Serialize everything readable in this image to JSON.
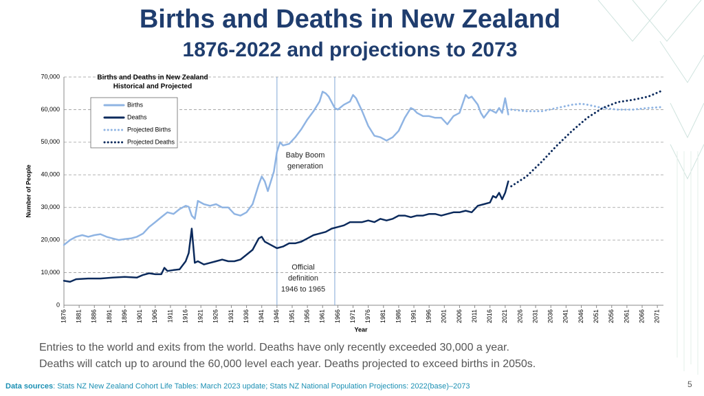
{
  "slide": {
    "title": "Births and Deaths in New Zealand",
    "subtitle": "1876-2022 and projections to 2073",
    "caption": [
      "Entries to the world and exits from the world. Deaths have only recently exceeded 30,000 a year.",
      "Deaths will catch up to around the 60,000 level each year. Deaths projected to exceed births in 2050s."
    ],
    "source_label": "Data sources",
    "source_text": ": Stats NZ New Zealand Cohort Life Tables: March 2023 update; Stats NZ National Population Projections: 2022(base)–2073",
    "page_number": "5"
  },
  "chart_data": {
    "type": "line",
    "title": [
      "Births and Deaths in New Zealand",
      "Historical and Projected"
    ],
    "x_label": "Year",
    "y_label": "Number of People",
    "grid": true,
    "xlim": [
      1876,
      2073
    ],
    "ylim": [
      0,
      70000
    ],
    "xticks": [
      1876,
      1881,
      1886,
      1891,
      1896,
      1901,
      1906,
      1911,
      1916,
      1921,
      1926,
      1931,
      1936,
      1941,
      1946,
      1951,
      1956,
      1961,
      1966,
      1971,
      1976,
      1981,
      1986,
      1991,
      1996,
      2001,
      2006,
      2011,
      2016,
      2021,
      2026,
      2031,
      2036,
      2041,
      2046,
      2051,
      2056,
      2061,
      2066,
      2071
    ],
    "yticks": [
      0,
      {
        "value": 10000,
        "label": "10,000"
      },
      {
        "value": 20000,
        "label": "20,000"
      },
      {
        "value": 30000,
        "label": "30,000"
      },
      {
        "value": 40000,
        "label": "40,000"
      },
      {
        "value": 50000,
        "label": "50,000"
      },
      {
        "value": 60000,
        "label": "60,000"
      },
      {
        "value": 70000,
        "label": "70,000"
      }
    ],
    "reference_lines": [
      1946,
      1965
    ],
    "annotations": [
      {
        "lines": [
          "Baby Boom",
          "generation"
        ]
      },
      {
        "lines": [
          "Official",
          "definition",
          "1946 to 1965"
        ]
      }
    ],
    "series": [
      {
        "name": "Births",
        "color": "#8fb4e3",
        "dash": "solid",
        "x": [
          1876,
          1878,
          1880,
          1882,
          1884,
          1886,
          1888,
          1890,
          1892,
          1894,
          1896,
          1898,
          1900,
          1902,
          1904,
          1906,
          1908,
          1910,
          1912,
          1914,
          1916,
          1917,
          1918,
          1919,
          1920,
          1921,
          1922,
          1924,
          1926,
          1928,
          1930,
          1932,
          1934,
          1936,
          1938,
          1940,
          1941,
          1942,
          1943,
          1944,
          1945,
          1946,
          1947,
          1948,
          1950,
          1952,
          1954,
          1956,
          1958,
          1960,
          1961,
          1962,
          1963,
          1965,
          1966,
          1968,
          1970,
          1971,
          1972,
          1974,
          1976,
          1978,
          1980,
          1982,
          1984,
          1986,
          1988,
          1990,
          1991,
          1992,
          1994,
          1996,
          1998,
          2000,
          2002,
          2004,
          2006,
          2008,
          2009,
          2010,
          2012,
          2013,
          2014,
          2016,
          2018,
          2019,
          2020,
          2021,
          2022
        ],
        "values": [
          18500,
          20000,
          21000,
          21500,
          21000,
          21500,
          21800,
          21000,
          20500,
          20000,
          20300,
          20500,
          21000,
          22000,
          24000,
          25500,
          27000,
          28500,
          28000,
          29500,
          30500,
          30200,
          27500,
          26500,
          32000,
          31500,
          31000,
          30500,
          31000,
          30000,
          30000,
          28000,
          27500,
          28500,
          31000,
          37000,
          39500,
          38000,
          35000,
          38000,
          41000,
          47000,
          50000,
          49000,
          49500,
          51500,
          54000,
          57000,
          59500,
          62500,
          65500,
          65000,
          64000,
          60500,
          60000,
          61500,
          62500,
          64500,
          63500,
          59500,
          55000,
          52000,
          51500,
          50500,
          51500,
          53500,
          57500,
          60500,
          60000,
          59000,
          58000,
          58000,
          57500,
          57500,
          55500,
          58000,
          59000,
          64500,
          63500,
          64000,
          61500,
          59000,
          57500,
          60000,
          59000,
          60500,
          59000,
          63500,
          58500
        ]
      },
      {
        "name": "Deaths",
        "color": "#0b2a5c",
        "dash": "solid",
        "x": [
          1876,
          1878,
          1880,
          1884,
          1888,
          1892,
          1896,
          1900,
          1902,
          1904,
          1906,
          1908,
          1909,
          1910,
          1912,
          1914,
          1916,
          1917,
          1918,
          1919,
          1920,
          1922,
          1924,
          1926,
          1928,
          1930,
          1932,
          1934,
          1936,
          1938,
          1940,
          1941,
          1942,
          1944,
          1946,
          1948,
          1950,
          1952,
          1954,
          1956,
          1958,
          1960,
          1962,
          1964,
          1966,
          1968,
          1970,
          1972,
          1974,
          1976,
          1978,
          1980,
          1982,
          1984,
          1986,
          1988,
          1990,
          1992,
          1994,
          1996,
          1998,
          2000,
          2002,
          2004,
          2006,
          2008,
          2010,
          2012,
          2014,
          2016,
          2017,
          2018,
          2019,
          2020,
          2021,
          2022
        ],
        "values": [
          7500,
          7200,
          8000,
          8200,
          8200,
          8500,
          8700,
          8500,
          9300,
          9800,
          9500,
          9500,
          11500,
          10500,
          10800,
          11000,
          13500,
          16000,
          23500,
          13000,
          13500,
          12500,
          13000,
          13500,
          14000,
          13500,
          13500,
          14000,
          15500,
          17000,
          20500,
          21000,
          19500,
          18500,
          17500,
          18000,
          19000,
          19000,
          19500,
          20500,
          21500,
          22000,
          22500,
          23500,
          24000,
          24500,
          25500,
          25500,
          25500,
          26000,
          25500,
          26500,
          26000,
          26500,
          27500,
          27500,
          27000,
          27500,
          27500,
          28000,
          28000,
          27500,
          28000,
          28500,
          28500,
          29000,
          28500,
          30500,
          31000,
          31500,
          33500,
          33000,
          34500,
          32500,
          34500,
          38000
        ]
      },
      {
        "name": "Projected Births",
        "color": "#8fb4e3",
        "dash": "dotted",
        "x": [
          2023,
          2028,
          2033,
          2038,
          2043,
          2046,
          2048,
          2053,
          2058,
          2063,
          2068,
          2073
        ],
        "values": [
          60000,
          59500,
          59500,
          60500,
          61500,
          61800,
          61500,
          60500,
          60000,
          60000,
          60500,
          60800
        ]
      },
      {
        "name": "Projected Deaths",
        "color": "#0b2a5c",
        "dash": "dotted",
        "x": [
          2023,
          2028,
          2033,
          2038,
          2043,
          2048,
          2053,
          2058,
          2063,
          2068,
          2073
        ],
        "values": [
          36500,
          39500,
          44000,
          49000,
          53500,
          57500,
          60500,
          62300,
          63000,
          64000,
          66000
        ]
      }
    ]
  }
}
